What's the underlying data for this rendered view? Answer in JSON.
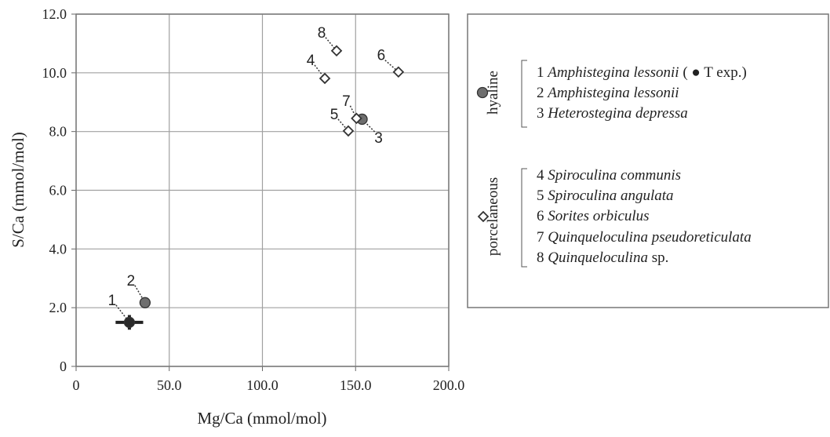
{
  "chart_data": {
    "type": "scatter",
    "xlabel": "Mg/Ca (mmol/mol)",
    "ylabel": "S/Ca (mmol/mol)",
    "xlim": [
      0,
      200
    ],
    "ylim": [
      0,
      12
    ],
    "xticks": [
      0,
      {
        "value": 50,
        "label": "50.0"
      },
      {
        "value": 100,
        "label": "100.0"
      },
      {
        "value": 150,
        "label": "150.0"
      },
      {
        "value": 200,
        "label": "200.0"
      }
    ],
    "yticks": [
      0,
      {
        "value": 2,
        "label": "2.0"
      },
      {
        "value": 4,
        "label": "4.0"
      },
      {
        "value": 6,
        "label": "6.0"
      },
      {
        "value": 8,
        "label": "8.0"
      },
      {
        "value": 10,
        "label": "10.0"
      },
      {
        "value": 12,
        "label": "12.0"
      }
    ],
    "grid": true,
    "series": [
      {
        "color": "#2a2a2a",
        "marker": "circle",
        "x": [
          28.6
        ],
        "y": [
          1.5
        ],
        "xerr": [
          7.4
        ],
        "yerr": [
          0.25
        ],
        "labels": [
          "1"
        ]
      },
      {
        "name": "hyaline",
        "color": "#6e6e6e",
        "marker": "circle",
        "x": [
          37.0,
          153.5
        ],
        "y": [
          2.17,
          8.42
        ],
        "labels": [
          "2",
          "3"
        ]
      },
      {
        "name": "porcelaneous",
        "color": "#ffffff",
        "marker": "diamond",
        "x": [
          133.5,
          146.1,
          173.0,
          150.5,
          139.8
        ],
        "y": [
          9.81,
          8.02,
          10.03,
          8.45,
          10.75
        ],
        "labels": [
          "4",
          "5",
          "6",
          "7",
          "8"
        ]
      }
    ],
    "legend": {
      "items": [
        {
          "number": "1",
          "name": "Amphistegina lessonii",
          "note": "( ● T exp.)"
        },
        {
          "number": "2",
          "name": "Amphistegina lessonii"
        },
        {
          "number": "3",
          "name": "Heterostegina depressa"
        },
        {
          "number": "4",
          "name": "Spiroculina communis"
        },
        {
          "number": "5",
          "name": "Spiroculina angulata"
        },
        {
          "number": "6",
          "name": "Sorites orbiculus"
        },
        {
          "number": "7",
          "name": "Quinqueloculina pseudoreticulata"
        },
        {
          "number": "8",
          "name": "Quinqueloculina",
          "note": "sp."
        }
      ]
    }
  }
}
